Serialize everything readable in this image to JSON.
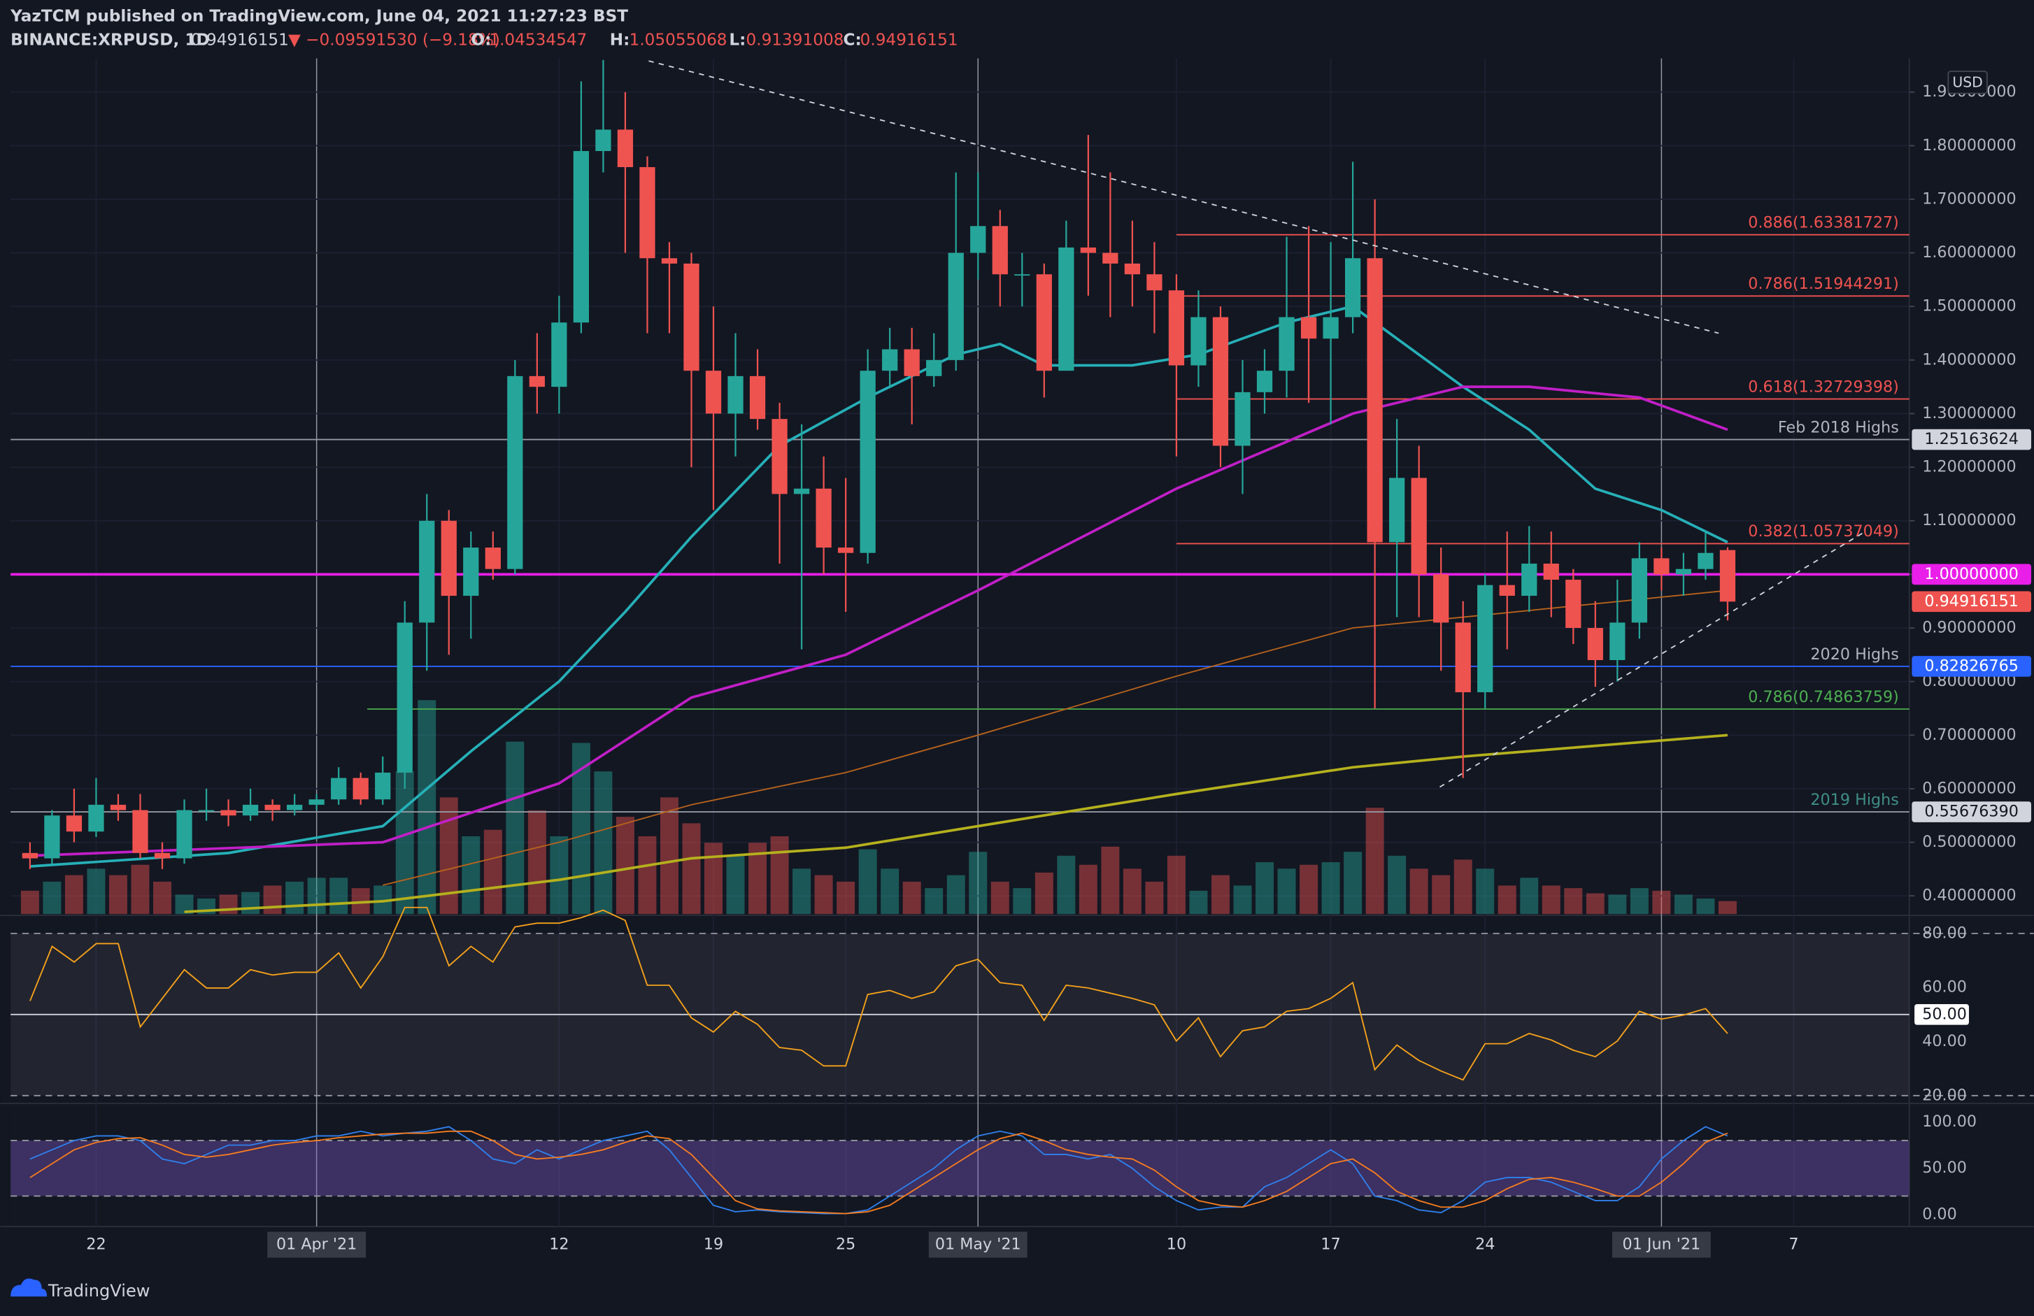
{
  "header": {
    "publisher": "YazTCM published on TradingView.com, June 04, 2021 11:27:23 BST",
    "symbol": "BINANCE:XRPUSD, 1D",
    "change": "▼ −0.09591530 (−9.18%)",
    "o": "O:",
    "h": "H:",
    "l": "L:",
    "c": "C:"
  },
  "footer": {
    "brand": "TradingView"
  },
  "chart_data": [
    {
      "type": "candlestick",
      "currency": "USD",
      "xlim": [
        -0.88,
        85.24
      ],
      "xticks": [
        {
          "value": 3,
          "label": "22"
        },
        {
          "value": 13,
          "label": "01 Apr '21"
        },
        {
          "value": 24,
          "label": "12"
        },
        {
          "value": 31,
          "label": "19"
        },
        {
          "value": 37,
          "label": "25"
        },
        {
          "value": 43,
          "label": "01 May '21"
        },
        {
          "value": 52,
          "label": "10"
        },
        {
          "value": 59,
          "label": "17"
        },
        {
          "value": 66,
          "label": "24"
        },
        {
          "value": 74,
          "label": "01 Jun '21"
        },
        {
          "value": 80,
          "label": "7"
        }
      ],
      "ylim": [
        0.366,
        1.963
      ],
      "yticks": [
        {
          "value": 0.4,
          "label": "0.40000000"
        },
        {
          "value": 0.5,
          "label": "0.50000000"
        },
        {
          "value": 0.6,
          "label": "0.60000000"
        },
        {
          "value": 0.7,
          "label": "0.70000000"
        },
        {
          "value": 0.8,
          "label": "0.80000000"
        },
        {
          "value": 0.9,
          "label": "0.90000000"
        },
        {
          "value": 1.0,
          "label": "1.00000000"
        },
        {
          "value": 1.1,
          "label": "1.10000000"
        },
        {
          "value": 1.2,
          "label": "1.20000000"
        },
        {
          "value": 1.3,
          "label": "1.30000000"
        },
        {
          "value": 1.4,
          "label": "1.40000000"
        },
        {
          "value": 1.5,
          "label": "1.50000000"
        },
        {
          "value": 1.6,
          "label": "1.60000000"
        },
        {
          "value": 1.7,
          "label": "1.70000000"
        },
        {
          "value": 1.8,
          "label": "1.80000000"
        },
        {
          "value": 1.9,
          "label": "1.90000000"
        }
      ],
      "up_color": "#26a69a",
      "down_color": "#ef5350",
      "open": [
        0.48,
        0.47,
        0.55,
        0.52,
        0.57,
        0.56,
        0.48,
        0.47,
        0.56,
        0.56,
        0.55,
        0.57,
        0.56,
        0.57,
        0.58,
        0.62,
        0.58,
        0.63,
        0.91,
        1.1,
        0.96,
        1.05,
        1.01,
        1.37,
        1.35,
        1.47,
        1.79,
        1.83,
        1.76,
        1.59,
        1.58,
        1.38,
        1.3,
        1.37,
        1.29,
        1.15,
        1.16,
        1.05,
        1.04,
        1.38,
        1.42,
        1.37,
        1.4,
        1.6,
        1.65,
        1.56,
        1.56,
        1.38,
        1.61,
        1.6,
        1.58,
        1.56,
        1.53,
        1.39,
        1.48,
        1.24,
        1.34,
        1.38,
        1.48,
        1.44,
        1.48,
        1.59,
        1.06,
        1.18,
        1.0,
        0.91,
        0.78,
        0.98,
        0.96,
        1.02,
        0.99,
        0.9,
        0.84,
        0.91,
        1.03,
        1.0,
        1.01,
        1.04534547
      ],
      "high": [
        0.5,
        0.56,
        0.6,
        0.62,
        0.59,
        0.59,
        0.5,
        0.58,
        0.6,
        0.58,
        0.6,
        0.58,
        0.59,
        0.59,
        0.64,
        0.63,
        0.66,
        0.95,
        1.15,
        1.12,
        1.08,
        1.08,
        1.4,
        1.45,
        1.52,
        1.92,
        1.96,
        1.9,
        1.78,
        1.62,
        1.6,
        1.5,
        1.45,
        1.42,
        1.32,
        1.28,
        1.22,
        1.18,
        1.42,
        1.46,
        1.46,
        1.45,
        1.75,
        1.75,
        1.68,
        1.6,
        1.58,
        1.66,
        1.82,
        1.75,
        1.66,
        1.62,
        1.56,
        1.53,
        1.5,
        1.4,
        1.42,
        1.63,
        1.65,
        1.62,
        1.77,
        1.7,
        1.29,
        1.24,
        1.05,
        0.95,
        1.0,
        1.08,
        1.09,
        1.08,
        1.01,
        0.95,
        0.99,
        1.06,
        1.05,
        1.04,
        1.08,
        1.05055068
      ],
      "low": [
        0.45,
        0.46,
        0.5,
        0.51,
        0.54,
        0.47,
        0.45,
        0.46,
        0.54,
        0.53,
        0.54,
        0.54,
        0.55,
        0.56,
        0.57,
        0.57,
        0.57,
        0.6,
        0.82,
        0.85,
        0.88,
        0.99,
        1.0,
        1.3,
        1.3,
        1.45,
        1.75,
        1.6,
        1.45,
        1.45,
        1.2,
        1.12,
        1.22,
        1.27,
        1.02,
        0.86,
        1.0,
        0.93,
        1.02,
        1.35,
        1.28,
        1.35,
        1.38,
        1.55,
        1.5,
        1.5,
        1.33,
        1.38,
        1.52,
        1.48,
        1.5,
        1.45,
        1.22,
        1.35,
        1.2,
        1.15,
        1.3,
        1.33,
        1.32,
        1.28,
        1.45,
        0.75,
        0.92,
        0.92,
        0.82,
        0.62,
        0.75,
        0.86,
        0.93,
        0.92,
        0.87,
        0.79,
        0.8,
        0.88,
        0.97,
        0.96,
        0.99,
        0.91391008
      ],
      "close": [
        0.47,
        0.55,
        0.52,
        0.57,
        0.56,
        0.48,
        0.47,
        0.56,
        0.56,
        0.55,
        0.57,
        0.56,
        0.57,
        0.58,
        0.62,
        0.58,
        0.63,
        0.91,
        1.1,
        0.96,
        1.05,
        1.01,
        1.37,
        1.35,
        1.47,
        1.79,
        1.83,
        1.76,
        1.59,
        1.58,
        1.38,
        1.3,
        1.37,
        1.29,
        1.15,
        1.16,
        1.05,
        1.04,
        1.38,
        1.42,
        1.37,
        1.4,
        1.6,
        1.65,
        1.56,
        1.56,
        1.38,
        1.61,
        1.6,
        1.58,
        1.56,
        1.53,
        1.39,
        1.48,
        1.24,
        1.34,
        1.38,
        1.48,
        1.44,
        1.48,
        1.59,
        1.06,
        1.18,
        1.0,
        0.91,
        0.78,
        0.98,
        0.96,
        1.02,
        0.99,
        0.9,
        0.84,
        0.91,
        1.03,
        1.0,
        1.01,
        1.04,
        0.94916151
      ],
      "volume": [
        18,
        25,
        30,
        35,
        30,
        38,
        25,
        15,
        12,
        15,
        17,
        22,
        25,
        28,
        28,
        20,
        22,
        110,
        165,
        90,
        60,
        65,
        133,
        80,
        60,
        132,
        110,
        75,
        60,
        90,
        70,
        55,
        45,
        55,
        60,
        35,
        30,
        25,
        50,
        35,
        25,
        20,
        30,
        48,
        25,
        20,
        32,
        45,
        38,
        52,
        35,
        25,
        45,
        18,
        30,
        22,
        40,
        35,
        38,
        40,
        48,
        82,
        45,
        35,
        30,
        42,
        35,
        22,
        28,
        22,
        20,
        16,
        15,
        20,
        18,
        15,
        12,
        10
      ],
      "series": [
        {
          "color": "#26b0b8",
          "x": [
            0,
            9,
            16,
            20,
            24,
            27,
            30,
            34,
            38,
            42,
            44,
            46,
            50,
            53,
            57,
            60,
            62,
            65,
            68,
            71,
            74,
            77
          ],
          "values": [
            0.455,
            0.48,
            0.53,
            0.67,
            0.8,
            0.93,
            1.07,
            1.24,
            1.33,
            1.41,
            1.43,
            1.39,
            1.39,
            1.41,
            1.47,
            1.5,
            1.44,
            1.35,
            1.27,
            1.16,
            1.12,
            1.06
          ]
        },
        {
          "color": "#c11fc7",
          "x": [
            0,
            16,
            24,
            30,
            37,
            43,
            52,
            60,
            65,
            68,
            73,
            77
          ],
          "values": [
            0.475,
            0.5,
            0.61,
            0.77,
            0.85,
            0.97,
            1.16,
            1.3,
            1.35,
            1.35,
            1.33,
            1.27
          ]
        },
        {
          "color": "#b8631c",
          "x": [
            16,
            24,
            30,
            37,
            43,
            52,
            60,
            65,
            77
          ],
          "values": [
            0.42,
            0.5,
            0.57,
            0.63,
            0.7,
            0.81,
            0.9,
            0.92,
            0.97
          ]
        },
        {
          "color": "#b5b11d",
          "x": [
            7,
            16,
            24,
            30,
            37,
            43,
            52,
            60,
            65,
            77
          ],
          "values": [
            0.37,
            0.39,
            0.43,
            0.47,
            0.49,
            0.53,
            0.59,
            0.64,
            0.66,
            0.7
          ]
        }
      ],
      "levels": [
        {
          "name": "0.886(1.63381727)",
          "value": 1.63381727,
          "color": "#f0524f",
          "label_color": "#f0524f"
        },
        {
          "name": "0.786(1.51944291)",
          "value": 1.51944291,
          "color": "#f0524f",
          "label_color": "#f0524f"
        },
        {
          "name": "0.618(1.32729398)",
          "value": 1.32729398,
          "color": "#f0524f",
          "label_color": "#f0524f"
        },
        {
          "name": "Feb 2018 Highs",
          "value": 1.25163624,
          "color": "#9598a1",
          "label_color": "#b2b5be",
          "badge": true
        },
        {
          "name": "0.382(1.05737049)",
          "value": 1.05737049,
          "color": "#f0524f",
          "label_color": "#f0524f"
        },
        {
          "value": {
            "value": 1,
            "label": "1.00000000"
          },
          "color": "#e91ee9",
          "badge": true
        },
        {
          "name": "2020 Highs",
          "value": 0.82826765,
          "color": "#2962ff",
          "label_color": "#b2b5be",
          "badge": true
        },
        {
          "name": "0.786(0.74863759)",
          "value": 0.74863759,
          "color": "#4caf50",
          "label_color": "#4caf50"
        },
        {
          "name": "2019 Highs",
          "value": {
            "value": 0.5567639,
            "label": "0.55676390"
          },
          "color": "#9598a1",
          "label_color": "#3f8f86",
          "badge": true
        }
      ]
    },
    {
      "type": "line",
      "color": "#f7a21b",
      "ylim": [
        17.6,
        86.2
      ],
      "band": [
        20,
        80
      ],
      "yticks": [
        {
          "value": 80,
          "label": "80.00"
        },
        {
          "value": 60,
          "label": "60.00"
        },
        {
          "value": 50,
          "label": "50.00"
        },
        {
          "value": 40,
          "label": "40.00"
        },
        {
          "value": 20,
          "label": "20.00"
        }
      ],
      "values": [
        55.0,
        75.2,
        69.4,
        76.2,
        76.2,
        45.4,
        56.0,
        66.6,
        59.8,
        59.8,
        66.6,
        64.6,
        65.6,
        65.6,
        72.8,
        59.8,
        71.4,
        89.6,
        89.6,
        68.0,
        75.2,
        69.4,
        82.4,
        83.8,
        83.8,
        85.8,
        88.6,
        84.8,
        60.8,
        60.8,
        48.8,
        43.5,
        51.2,
        46.4,
        37.8,
        36.8,
        31.0,
        31.0,
        57.4,
        58.9,
        56.0,
        58.4,
        68.0,
        70.4,
        61.8,
        60.8,
        47.8,
        60.8,
        59.8,
        57.9,
        56.0,
        53.6,
        40.2,
        48.8,
        34.4,
        44.0,
        45.4,
        51.2,
        52.2,
        56.0,
        61.8,
        29.6,
        38.7,
        33.0,
        29.1,
        25.8,
        39.2,
        39.2,
        43.0,
        40.6,
        36.8,
        34.4,
        40.2,
        51.2,
        48.3,
        49.8,
        52.2,
        43.0
      ]
    },
    {
      "type": "line",
      "ylim": [
        -11.6,
        118.8
      ],
      "band": [
        20,
        80
      ],
      "yticks": [
        {
          "value": 100,
          "label": "100.00"
        },
        {
          "value": 50,
          "label": "50.00"
        },
        {
          "value": 0,
          "label": "0.00"
        }
      ],
      "series": [
        {
          "color": "#2f80ed",
          "values": [
            60,
            70,
            80,
            85,
            85,
            80,
            60,
            55,
            65,
            75,
            75,
            80,
            80,
            85,
            85,
            90,
            85,
            88,
            90,
            95,
            80,
            60,
            55,
            70,
            60,
            70,
            80,
            85,
            90,
            70,
            40,
            10,
            3,
            5,
            3,
            2,
            1,
            1,
            5,
            20,
            35,
            50,
            70,
            85,
            90,
            85,
            65,
            65,
            60,
            65,
            50,
            30,
            15,
            5,
            8,
            8,
            30,
            40,
            55,
            70,
            55,
            20,
            15,
            5,
            2,
            15,
            35,
            40,
            40,
            35,
            25,
            15,
            15,
            30,
            60,
            80,
            95,
            85
          ]
        },
        {
          "color": "#f57c20",
          "values": [
            40,
            55,
            70,
            78,
            82,
            83,
            75,
            65,
            62,
            65,
            70,
            75,
            78,
            80,
            83,
            85,
            87,
            88,
            88,
            90,
            90,
            80,
            65,
            60,
            62,
            65,
            70,
            78,
            85,
            82,
            65,
            40,
            15,
            6,
            4,
            3,
            2,
            1,
            3,
            10,
            25,
            40,
            55,
            70,
            82,
            88,
            80,
            70,
            65,
            62,
            60,
            48,
            30,
            15,
            10,
            8,
            15,
            25,
            40,
            55,
            60,
            45,
            25,
            15,
            8,
            8,
            15,
            28,
            38,
            40,
            35,
            28,
            20,
            20,
            35,
            55,
            78,
            88
          ]
        }
      ]
    }
  ]
}
